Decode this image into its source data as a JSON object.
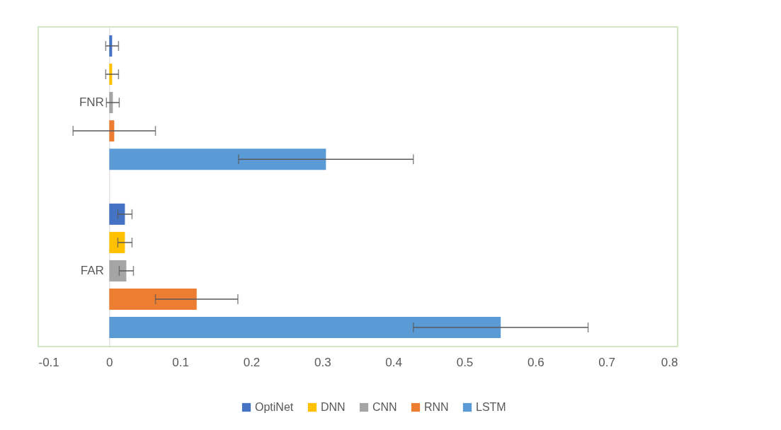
{
  "chart_data": {
    "type": "bar",
    "orientation": "horizontal",
    "categories": [
      "FNR",
      "FAR"
    ],
    "series": [
      {
        "name": "OptiNet",
        "color": "#4472c4",
        "values": [
          0.004,
          0.022
        ],
        "errors": [
          0.009,
          0.01
        ]
      },
      {
        "name": "DNN",
        "color": "#ffc000",
        "values": [
          0.004,
          0.022
        ],
        "errors": [
          0.009,
          0.01
        ]
      },
      {
        "name": "CNN",
        "color": "#a5a5a5",
        "values": [
          0.005,
          0.024
        ],
        "errors": [
          0.009,
          0.01
        ]
      },
      {
        "name": "RNN",
        "color": "#ed7d31",
        "values": [
          0.007,
          0.123
        ],
        "errors": [
          0.058,
          0.058
        ]
      },
      {
        "name": "LSTM",
        "color": "#5b9bd5",
        "values": [
          0.305,
          0.551
        ],
        "errors": [
          0.123,
          0.123
        ]
      }
    ],
    "xlim": [
      -0.1,
      0.8
    ],
    "xticks": [
      -0.1,
      0,
      0.1,
      0.2,
      0.3,
      0.4,
      0.5,
      0.6,
      0.7,
      0.8
    ],
    "grid": false,
    "legend": "bottom"
  }
}
